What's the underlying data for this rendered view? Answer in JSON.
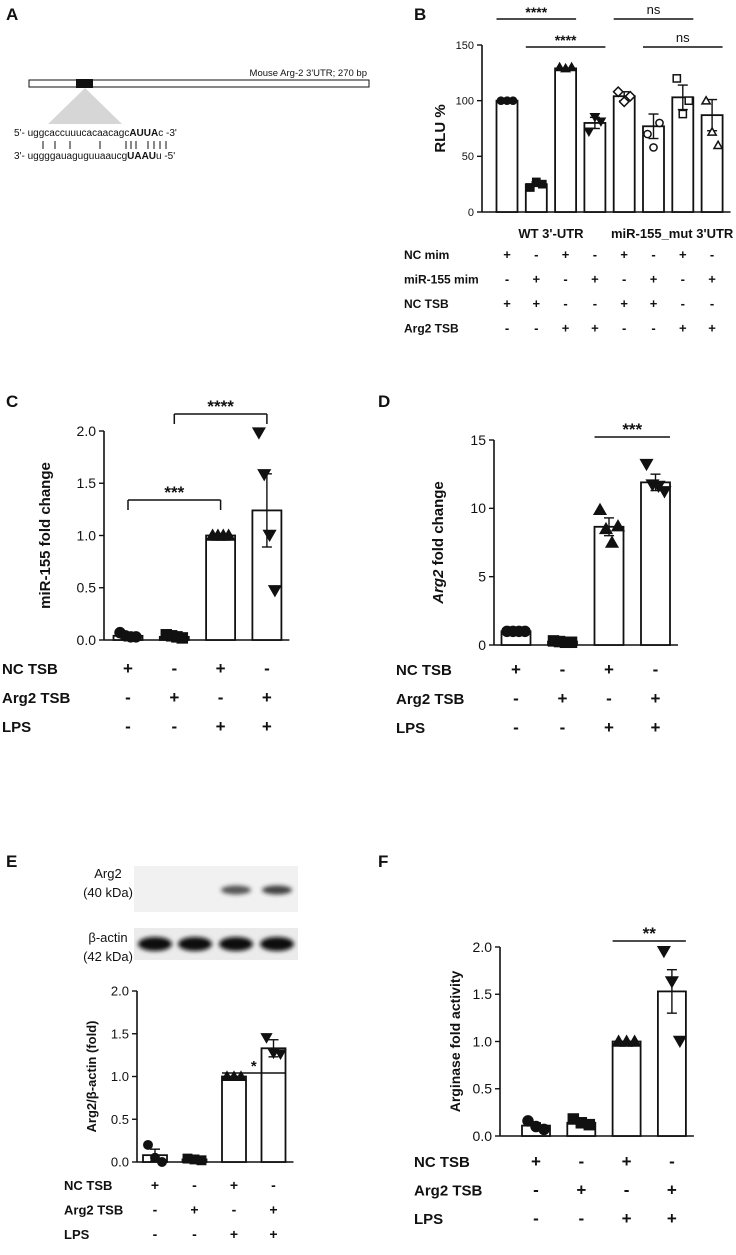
{
  "panel_letters": [
    "A",
    "B",
    "C",
    "D",
    "E",
    "F"
  ],
  "panelA": {
    "utr_label": "Mouse Arg-2 3'UTR; 270 bp",
    "seq_top": {
      "prefix": "5'- uggcaccuuucacaacagc",
      "bold": "AUUA",
      "suffix": "c -3'"
    },
    "seq_bottom": {
      "prefix": "3'- uggggauaguguuaaucg",
      "bold": "UAAU",
      "suffix": "u -5'"
    }
  },
  "chart_data": [
    {
      "panel": "B",
      "type": "bar",
      "ylabel": "RLU %",
      "ylim": [
        0,
        150
      ],
      "yticks": [
        0,
        50,
        100,
        150
      ],
      "group_labels": [
        "WT 3'-UTR",
        "miR-155_mut 3'UTR"
      ],
      "values": [
        100,
        25,
        129,
        80,
        104,
        77,
        103,
        87
      ],
      "errors": [
        0,
        2,
        0,
        5,
        4,
        11,
        11,
        14
      ],
      "markers": [
        "circle-filled",
        "square-filled",
        "triangle-filled",
        "triangle-down-filled",
        "diamond-open",
        "circle-open",
        "square-open",
        "triangle-open"
      ],
      "points": [
        [
          100,
          100,
          100
        ],
        [
          22,
          27,
          25
        ],
        [
          130,
          129,
          130
        ],
        [
          72,
          85,
          81
        ],
        [
          108,
          99,
          104
        ],
        [
          70,
          58,
          80
        ],
        [
          120,
          88,
          100
        ],
        [
          100,
          72,
          60
        ]
      ],
      "significance": [
        {
          "bars": [
            0,
            2
          ],
          "label": "****"
        },
        {
          "bars": [
            1,
            3
          ],
          "label": "****"
        },
        {
          "bars": [
            4,
            6
          ],
          "label": "ns"
        },
        {
          "bars": [
            5,
            7
          ],
          "label": "ns"
        }
      ],
      "conditions": [
        {
          "label": "NC mim",
          "signs": [
            "+",
            "-",
            "+",
            "-",
            "+",
            "-",
            "+",
            "-"
          ]
        },
        {
          "label": "miR-155 mim",
          "signs": [
            "-",
            "+",
            "-",
            "+",
            "-",
            "+",
            "-",
            "+"
          ]
        },
        {
          "label": "NC TSB",
          "signs": [
            "+",
            "+",
            "-",
            "-",
            "+",
            "+",
            "-",
            "-"
          ]
        },
        {
          "label": "Arg2 TSB",
          "signs": [
            "-",
            "-",
            "+",
            "+",
            "-",
            "-",
            "+",
            "+"
          ]
        }
      ]
    },
    {
      "panel": "C",
      "type": "bar",
      "ylabel": "miR-155 fold change",
      "ylim": [
        0,
        2.0
      ],
      "yticks": [
        "0.0",
        "0.5",
        "1.0",
        "1.5",
        "2.0"
      ],
      "values": [
        0.04,
        0.03,
        1.0,
        1.24
      ],
      "errors": [
        0.01,
        0.01,
        0,
        0.35
      ],
      "markers": [
        "circle-filled",
        "square-filled",
        "triangle-filled",
        "triangle-down-filled"
      ],
      "points": [
        [
          0.07,
          0.04,
          0.03,
          0.03
        ],
        [
          0.05,
          0.04,
          0.03,
          0.02
        ],
        [
          1.0,
          1.0,
          1.0,
          1.0
        ],
        [
          1.98,
          1.58,
          1.0,
          0.47
        ]
      ],
      "significance": [
        {
          "bars": [
            0,
            2
          ],
          "label": "***"
        },
        {
          "bars": [
            1,
            3
          ],
          "label": "****"
        }
      ],
      "conditions": [
        {
          "label": "NC TSB",
          "signs": [
            "+",
            "-",
            "+",
            "-"
          ]
        },
        {
          "label": "Arg2 TSB",
          "signs": [
            "-",
            "+",
            "-",
            "+"
          ]
        },
        {
          "label": "LPS",
          "signs": [
            "-",
            "-",
            "+",
            "+"
          ]
        }
      ]
    },
    {
      "panel": "D",
      "type": "bar",
      "ylabel": "Arg2 fold change",
      "ylim": [
        0,
        15
      ],
      "yticks": [
        "0",
        "5",
        "10",
        "15"
      ],
      "values": [
        1.0,
        0.25,
        8.65,
        11.9
      ],
      "errors": [
        0.02,
        0.02,
        0.65,
        0.6
      ],
      "markers": [
        "circle-filled",
        "square-filled",
        "triangle-filled",
        "triangle-down-filled"
      ],
      "points": [
        [
          1.0,
          1.0,
          1.0,
          1.0
        ],
        [
          0.3,
          0.25,
          0.2,
          0.2
        ],
        [
          9.9,
          8.5,
          7.5,
          8.7
        ],
        [
          13.2,
          11.7,
          11.6,
          11.2
        ]
      ],
      "significance": [
        {
          "bars": [
            2,
            3
          ],
          "label": "***"
        }
      ],
      "conditions": [
        {
          "label": "NC TSB",
          "signs": [
            "+",
            "-",
            "+",
            "-"
          ]
        },
        {
          "label": "Arg2 TSB",
          "signs": [
            "-",
            "+",
            "-",
            "+"
          ]
        },
        {
          "label": "LPS",
          "signs": [
            "-",
            "-",
            "+",
            "+"
          ]
        }
      ]
    },
    {
      "panel": "E",
      "type": "bar",
      "ylabel": "Arg2/β-actin (fold)",
      "ylim": [
        0,
        2.0
      ],
      "yticks": [
        "0.0",
        "0.5",
        "1.0",
        "1.5",
        "2.0"
      ],
      "values": [
        0.08,
        0.03,
        1.0,
        1.33
      ],
      "errors": [
        0.07,
        0.01,
        0,
        0.1
      ],
      "markers": [
        "circle-filled",
        "square-filled",
        "triangle-filled",
        "triangle-down-filled"
      ],
      "points": [
        [
          0.2,
          0.05,
          0.0
        ],
        [
          0.04,
          0.03,
          0.02
        ],
        [
          1.0,
          1.0,
          1.0
        ],
        [
          1.45,
          1.27,
          1.26
        ]
      ],
      "significance": [
        {
          "bars": [
            2,
            3
          ],
          "label": "*"
        }
      ],
      "conditions": [
        {
          "label": "NC TSB",
          "signs": [
            "+",
            "-",
            "+",
            "-"
          ]
        },
        {
          "label": "Arg2 TSB",
          "signs": [
            "-",
            "+",
            "-",
            "+"
          ]
        },
        {
          "label": "LPS",
          "signs": [
            "-",
            "-",
            "+",
            "+"
          ]
        }
      ]
    },
    {
      "panel": "F",
      "type": "bar",
      "ylabel": "Arginase fold activity",
      "ylim": [
        0,
        2.0
      ],
      "yticks": [
        "0.0",
        "0.5",
        "1.0",
        "1.5",
        "2.0"
      ],
      "values": [
        0.11,
        0.14,
        1.0,
        1.53
      ],
      "errors": [
        0.03,
        0.03,
        0,
        0.23
      ],
      "markers": [
        "circle-filled",
        "square-filled",
        "triangle-filled",
        "triangle-down-filled"
      ],
      "points": [
        [
          0.16,
          0.1,
          0.07
        ],
        [
          0.18,
          0.14,
          0.12
        ],
        [
          1.0,
          1.0,
          1.0
        ],
        [
          1.95,
          1.63,
          1.0
        ]
      ],
      "significance": [
        {
          "bars": [
            2,
            3
          ],
          "label": "**"
        }
      ],
      "conditions": [
        {
          "label": "NC TSB",
          "signs": [
            "+",
            "-",
            "+",
            "-"
          ]
        },
        {
          "label": "Arg2 TSB",
          "signs": [
            "-",
            "+",
            "-",
            "+"
          ]
        },
        {
          "label": "LPS",
          "signs": [
            "-",
            "-",
            "+",
            "+"
          ]
        }
      ]
    }
  ],
  "blot": {
    "row1_label": [
      "Arg2",
      "(40 kDa)"
    ],
    "row2_label": [
      "β-actin",
      "(42 kDa)"
    ],
    "arg2_band_strength": [
      0,
      0,
      0.75,
      0.85
    ],
    "actin_band_strength": [
      1,
      1,
      1,
      1
    ]
  }
}
